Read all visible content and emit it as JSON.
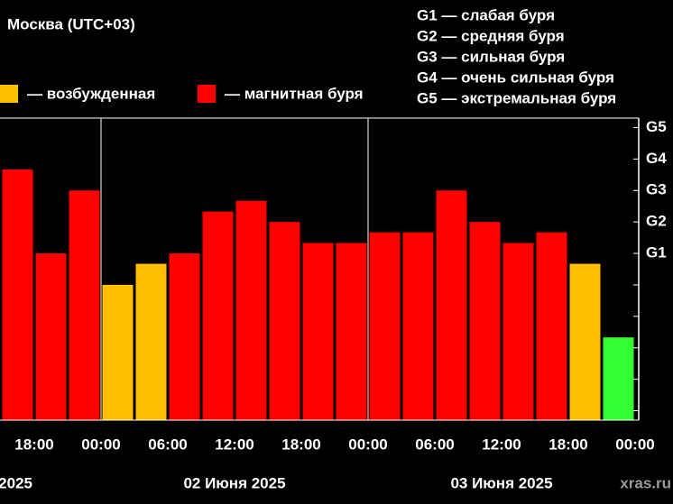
{
  "chart_data": {
    "type": "bar",
    "title": "Москва (UTC+03)",
    "legend": [
      {
        "label": "— возбужденная",
        "color": "#ffbf00"
      },
      {
        "label": "— магнитная буря",
        "color": "#ff0000"
      }
    ],
    "scale_notes": [
      "G1 — слабая буря",
      "G2 — средняя буря",
      "G3 — сильная буря",
      "G4 — очень сильная буря",
      "G5 — экстремальная буря"
    ],
    "values": [
      7.67,
      5,
      7,
      4,
      4.67,
      5,
      6.33,
      6.67,
      6,
      5.33,
      5.33,
      5.67,
      5.67,
      7,
      6,
      5.33,
      5.67,
      4.67,
      2.33
    ],
    "colors": [
      "#ff0000",
      "#ff0000",
      "#ff0000",
      "#ffbf00",
      "#ffbf00",
      "#ff0000",
      "#ff0000",
      "#ff0000",
      "#ff0000",
      "#ff0000",
      "#ff0000",
      "#ff0000",
      "#ff0000",
      "#ff0000",
      "#ff0000",
      "#ff0000",
      "#ff0000",
      "#ffbf00",
      "#33ff33"
    ],
    "x_tick_labels": [
      "18:00",
      "00:00",
      "06:00",
      "12:00",
      "18:00",
      "00:00",
      "06:00",
      "12:00",
      "18:00",
      "00:00"
    ],
    "date_labels": [
      "2025",
      "02 Июня 2025",
      "03 Июня 2025"
    ],
    "watermark": "xras.ru",
    "ylim": [
      -0.3,
      9.3
    ],
    "yticks": [
      {
        "value": 5,
        "label": "G1"
      },
      {
        "value": 6,
        "label": "G2"
      },
      {
        "value": 7,
        "label": "G3"
      },
      {
        "value": 8,
        "label": "G4"
      },
      {
        "value": 9,
        "label": "G5"
      }
    ],
    "minor_yticks": [
      0,
      1,
      2,
      3,
      4
    ]
  }
}
